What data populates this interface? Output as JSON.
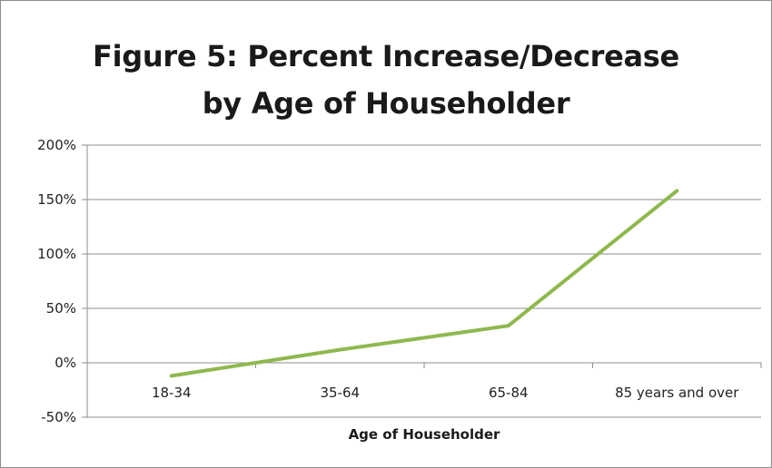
{
  "chart_data": {
    "type": "line",
    "title": "Figure 5: Percent Increase/Decrease by Age of Householder",
    "title_lines": [
      "Figure 5: Percent Increase/Decrease",
      "by Age of Householder"
    ],
    "xlabel": "Age of Householder",
    "ylabel": "",
    "categories": [
      "18-34",
      "35-64",
      "65-84",
      "85 years and over"
    ],
    "series": [
      {
        "values": [
          -12,
          12,
          34,
          158
        ],
        "color": "#8fb84f"
      }
    ],
    "ylim": [
      -50,
      200
    ],
    "yticks": [
      -50,
      0,
      50,
      100,
      150,
      200
    ],
    "ytick_labels": [
      "-50%",
      "0%",
      "50%",
      "100%",
      "150%",
      "200%"
    ],
    "grid": true,
    "legend": "none"
  }
}
